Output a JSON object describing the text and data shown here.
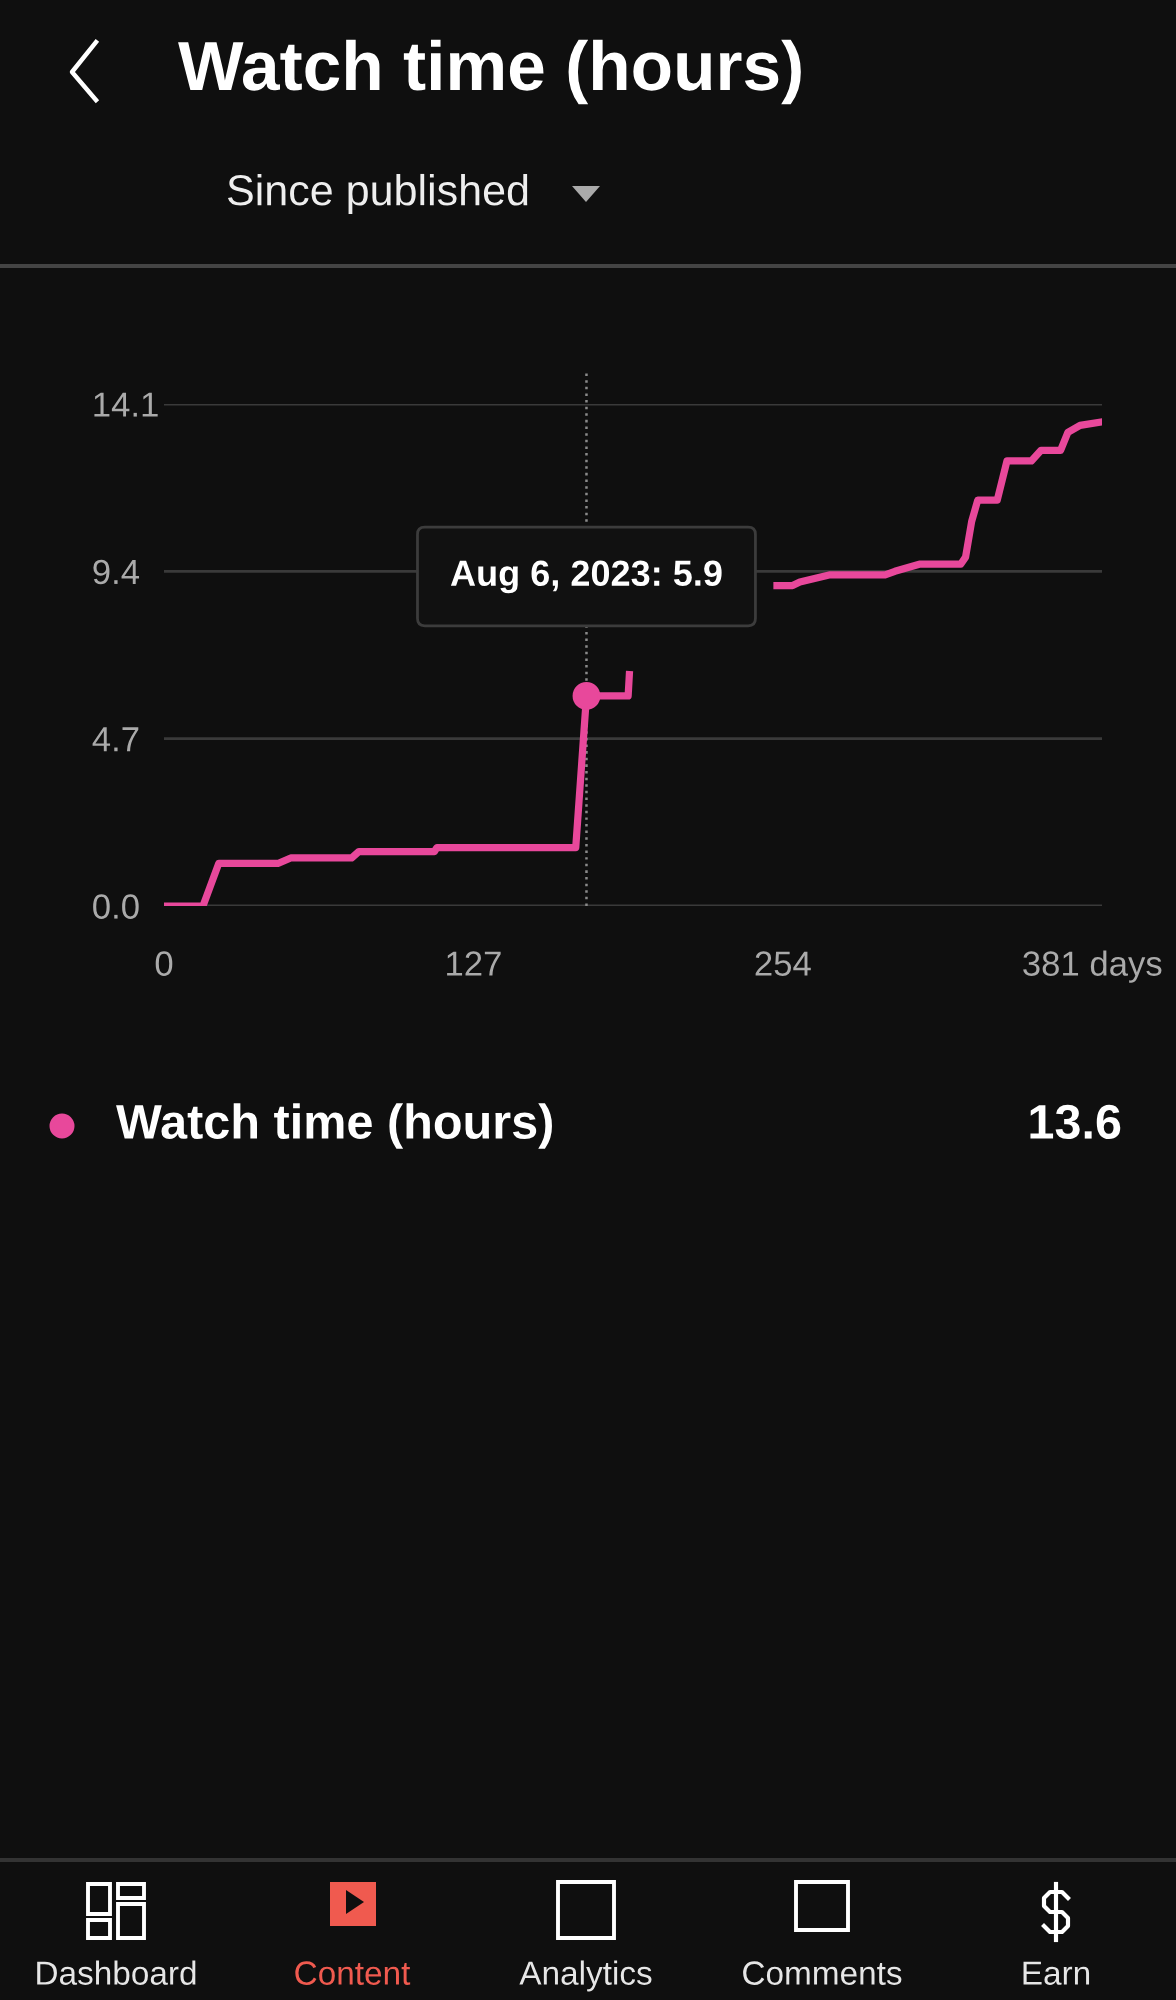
{
  "chart_data": {
    "type": "line",
    "title": "Watch time (hours)",
    "subtitle": "Since published",
    "x": [
      0,
      16,
      22.5,
      47,
      52,
      77,
      80,
      111,
      112,
      169,
      173.4,
      190.5,
      191,
      220,
      251.6,
      258,
      261,
      273,
      296,
      300,
      310,
      327,
      329,
      331.5,
      334,
      342,
      346,
      356,
      360,
      368,
      371,
      376,
      385
    ],
    "series": [
      {
        "name": "Watch time (hours)",
        "color": "#e8489b",
        "values": [
          0,
          0,
          1.2,
          1.2,
          1.35,
          1.35,
          1.53,
          1.53,
          1.64,
          1.64,
          5.9,
          5.9,
          6.5,
          null,
          9.0,
          9.0,
          9.1,
          9.3,
          9.3,
          9.4,
          9.6,
          9.6,
          9.8,
          10.8,
          11.4,
          11.4,
          12.5,
          12.5,
          12.8,
          12.8,
          13.3,
          13.5,
          13.6
        ]
      }
    ],
    "xlim": [
      0,
      385
    ],
    "xticks": [
      0,
      127,
      254,
      {
        "value": 381,
        "label": "381 days"
      }
    ],
    "ylim": [
      0,
      14.1
    ],
    "yticks": [
      {
        "value": 0,
        "label": "0.0"
      },
      4.7,
      9.4,
      14.1
    ],
    "grid": "y",
    "legend": "bottom",
    "marker": "none",
    "line_style": "solid",
    "ref_lines": [
      {
        "axis": "x",
        "value": 173.4,
        "label": null,
        "color": "#8a8a8a",
        "line_style": "dotted"
      }
    ],
    "annotations": [
      {
        "text": "Aug 6, 2023: 5.9",
        "x": 173.4,
        "y": 5.9
      },
      "13.6",
      "Dashboard",
      "Content",
      "Analytics",
      "Comments",
      "Earn"
    ]
  }
}
